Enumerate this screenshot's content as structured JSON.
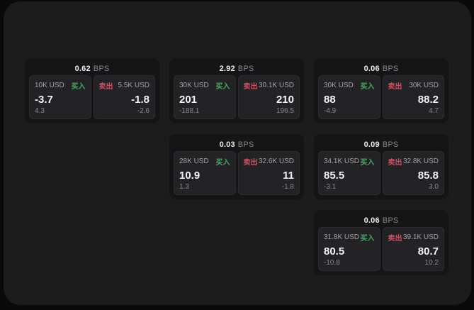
{
  "labels": {
    "bps": "BPS",
    "buy": "买入",
    "sell": "卖出"
  },
  "colors": {
    "background": "#0a0a0b",
    "panel": "#1c1c1d",
    "card": "#151516",
    "subcard": "#232325",
    "buy_green": "#46a862",
    "sell_red": "#cf4f63",
    "text_primary": "#f4f4f5",
    "text_muted": "#89898c"
  },
  "cards": [
    {
      "bps": "0.62",
      "buy": {
        "size": "10K USD",
        "price": "-3.7",
        "delta": "4.3"
      },
      "sell": {
        "size": "5.5K USD",
        "price": "-1.8",
        "delta": "-2.6"
      }
    },
    {
      "bps": "2.92",
      "buy": {
        "size": "30K USD",
        "price": "201",
        "delta": "-188.1"
      },
      "sell": {
        "size": "30.1K USD",
        "price": "210",
        "delta": "196.5"
      }
    },
    {
      "bps": "0.06",
      "buy": {
        "size": "30K USD",
        "price": "88",
        "delta": "-4.9"
      },
      "sell": {
        "size": "30K USD",
        "price": "88.2",
        "delta": "4.7"
      }
    },
    {
      "bps": "0.03",
      "buy": {
        "size": "28K USD",
        "price": "10.9",
        "delta": "1.3"
      },
      "sell": {
        "size": "32.6K USD",
        "price": "11",
        "delta": "-1.8"
      }
    },
    {
      "bps": "0.09",
      "buy": {
        "size": "34.1K USD",
        "price": "85.5",
        "delta": "-3.1"
      },
      "sell": {
        "size": "32.8K USD",
        "price": "85.8",
        "delta": "3.0"
      }
    },
    {
      "bps": "0.06",
      "buy": {
        "size": "31.8K USD",
        "price": "80.5",
        "delta": "-10.8"
      },
      "sell": {
        "size": "39.1K USD",
        "price": "80.7",
        "delta": "10.2"
      }
    }
  ]
}
